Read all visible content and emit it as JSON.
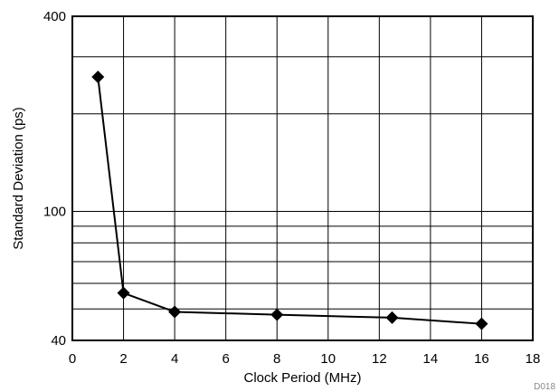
{
  "chart_data": {
    "type": "line",
    "title": "",
    "xlabel": "Clock Period (MHz)",
    "ylabel": "Standard Deviation (ps)",
    "xlim": [
      0,
      18
    ],
    "ylim": [
      40,
      400
    ],
    "yscale": "log",
    "x_ticks": [
      0,
      2,
      4,
      6,
      8,
      10,
      12,
      14,
      16,
      18
    ],
    "y_tick_labels": [
      40,
      100,
      400
    ],
    "y_gridlines": [
      50,
      60,
      70,
      80,
      90,
      100,
      200,
      300,
      400
    ],
    "grid": true,
    "marker": "diamond",
    "color": "#000000",
    "figure_id": "D018",
    "series": [
      {
        "x": [
          1,
          2,
          4,
          8,
          12.5,
          16
        ],
        "y": [
          260,
          56,
          49,
          48,
          47,
          45
        ]
      }
    ]
  }
}
